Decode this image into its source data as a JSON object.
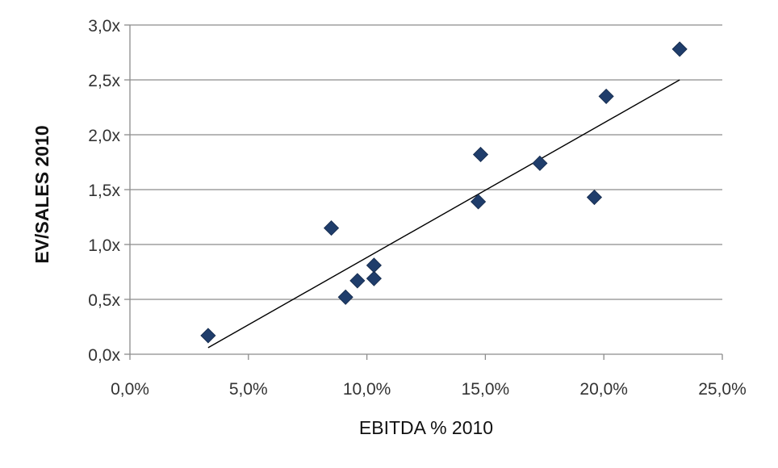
{
  "chart_data": {
    "type": "scatter",
    "title": "",
    "xlabel": "EBITDA % 2010",
    "ylabel": "EV/SALES 2010",
    "xlim": [
      0.0,
      25.0
    ],
    "ylim": [
      0.0,
      3.0
    ],
    "x_ticks": [
      0,
      5,
      10,
      15,
      20,
      25
    ],
    "x_tick_labels": [
      "0,0%",
      "5,0%",
      "10,0%",
      "15,0%",
      "20,0%",
      "25,0%"
    ],
    "y_ticks": [
      0,
      0.5,
      1.0,
      1.5,
      2.0,
      2.5,
      3.0
    ],
    "y_tick_labels": [
      "0,0x",
      "0,5x",
      "1,0x",
      "1,5x",
      "2,0x",
      "2,5x",
      "3,0x"
    ],
    "grid": "horizontal",
    "legend": "none",
    "marker": "diamond",
    "marker_color": "#1f3d6b",
    "points": [
      {
        "x": 3.3,
        "y": 0.17
      },
      {
        "x": 8.5,
        "y": 1.15
      },
      {
        "x": 9.1,
        "y": 0.52
      },
      {
        "x": 9.6,
        "y": 0.67
      },
      {
        "x": 10.3,
        "y": 0.69
      },
      {
        "x": 10.3,
        "y": 0.81
      },
      {
        "x": 14.7,
        "y": 1.39
      },
      {
        "x": 14.8,
        "y": 1.82
      },
      {
        "x": 17.3,
        "y": 1.74
      },
      {
        "x": 19.6,
        "y": 1.43
      },
      {
        "x": 20.1,
        "y": 2.35
      },
      {
        "x": 23.2,
        "y": 2.78
      }
    ],
    "trendline": {
      "type": "linear",
      "color": "#000000",
      "x": [
        3.3,
        23.2
      ],
      "y": [
        0.06,
        2.5
      ]
    }
  }
}
